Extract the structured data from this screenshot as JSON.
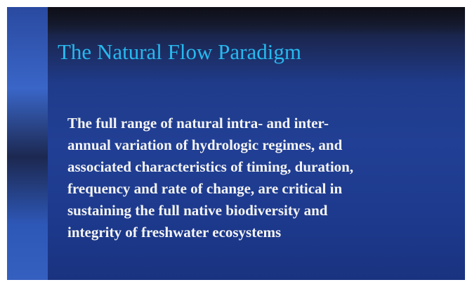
{
  "slide": {
    "title": "The Natural Flow Paradigm",
    "body_lines": [
      "The full range of natural intra- and inter-",
      "annual variation of hydrologic regimes, and",
      "associated characteristics of timing, duration,",
      "frequency and rate of change, are critical in",
      "sustaining the full native biodiversity and",
      "integrity of freshwater ecosystems"
    ]
  }
}
